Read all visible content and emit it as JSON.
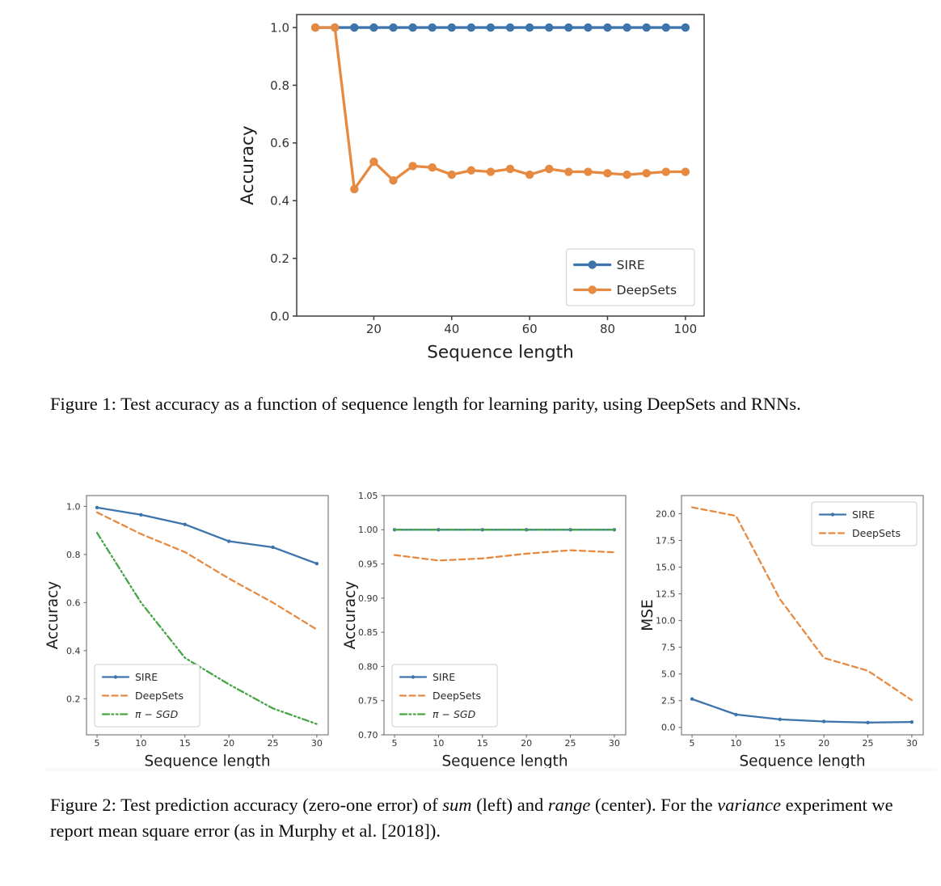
{
  "captions": {
    "figure1": [
      {
        "text": "Figure 1:  Test accuracy as a function of sequence length for learning parity, using DeepSets and RNNs."
      }
    ],
    "figure2": [
      {
        "text": "Figure 2: Test prediction accuracy (zero-one error) of "
      },
      {
        "text": "sum",
        "italic": true
      },
      {
        "text": " (left) and "
      },
      {
        "text": "range",
        "italic": true
      },
      {
        "text": " (center). For the "
      },
      {
        "text": "variance",
        "italic": true
      },
      {
        "text": " experiment we report mean square error (as in Murphy et al. [2018])."
      }
    ]
  },
  "colors": {
    "sire_blue": "#3d74ab",
    "deepsets_orange": "#e68a42",
    "pisgd_green": "#47a447"
  },
  "chart_data": [
    {
      "id": "figure1",
      "type": "line",
      "xlabel": "Sequence length",
      "ylabel": "Accuracy",
      "xlim": [
        0.2,
        104.8
      ],
      "ylim": [
        0.0,
        1.045
      ],
      "xticks": [
        20,
        40,
        60,
        80,
        100
      ],
      "xtick_labels": [
        "20",
        "40",
        "60",
        "80",
        "100"
      ],
      "yticks": [
        0.0,
        0.2,
        0.4,
        0.6,
        0.8,
        1.0
      ],
      "ytick_labels": [
        "0.0",
        "0.2",
        "0.4",
        "0.6",
        "0.8",
        "1.0"
      ],
      "grid": false,
      "legend_position": "lower right",
      "x": [
        5,
        10,
        15,
        20,
        25,
        30,
        35,
        40,
        45,
        50,
        55,
        60,
        65,
        70,
        75,
        80,
        85,
        90,
        95,
        100
      ],
      "series": [
        {
          "name": "SIRE",
          "color": "#3d74ab",
          "line": "solid",
          "marker": true,
          "values": [
            1.0,
            1.0,
            1.0,
            1.0,
            1.0,
            1.0,
            1.0,
            1.0,
            1.0,
            1.0,
            1.0,
            1.0,
            1.0,
            1.0,
            1.0,
            1.0,
            1.0,
            1.0,
            1.0,
            1.0
          ]
        },
        {
          "name": "DeepSets",
          "color": "#e68a42",
          "line": "solid",
          "marker": true,
          "values": [
            1.0,
            1.0,
            0.44,
            0.535,
            0.47,
            0.52,
            0.515,
            0.49,
            0.505,
            0.5,
            0.51,
            0.49,
            0.51,
            0.5,
            0.5,
            0.495,
            0.49,
            0.495,
            0.5,
            0.5
          ]
        }
      ]
    },
    {
      "id": "figure2-left",
      "type": "line",
      "xlabel": "Sequence length",
      "ylabel": "Accuracy",
      "xlim": [
        3.8,
        31.3
      ],
      "ylim": [
        0.05,
        1.045
      ],
      "xticks": [
        5,
        10,
        15,
        20,
        25,
        30
      ],
      "xtick_labels": [
        "5",
        "10",
        "15",
        "20",
        "25",
        "30"
      ],
      "yticks": [
        0.2,
        0.4,
        0.6,
        0.8,
        1.0
      ],
      "ytick_labels": [
        "0.2",
        "0.4",
        "0.6",
        "0.8",
        "1.0"
      ],
      "grid": false,
      "legend_position": "lower left",
      "x": [
        5,
        10,
        15,
        20,
        25,
        30
      ],
      "series": [
        {
          "name": "SIRE",
          "color": "#3d74ab",
          "line": "solid",
          "marker": true,
          "values": [
            0.995,
            0.965,
            0.925,
            0.855,
            0.83,
            0.762
          ]
        },
        {
          "name": "DeepSets",
          "color": "#e68a42",
          "line": "dashed",
          "marker": false,
          "values": [
            0.975,
            0.885,
            0.81,
            0.7,
            0.6,
            0.488
          ]
        },
        {
          "name": "π − SGD",
          "italic": true,
          "color": "#47a447",
          "line": "dashdotdot",
          "marker": false,
          "values": [
            0.89,
            0.6,
            0.37,
            0.26,
            0.16,
            0.095
          ]
        }
      ]
    },
    {
      "id": "figure2-center",
      "type": "line",
      "xlabel": "Sequence length",
      "ylabel": "Accuracy",
      "xlim": [
        3.8,
        31.3
      ],
      "ylim": [
        0.7,
        1.05
      ],
      "xticks": [
        5,
        10,
        15,
        20,
        25,
        30
      ],
      "xtick_labels": [
        "5",
        "10",
        "15",
        "20",
        "25",
        "30"
      ],
      "yticks": [
        0.7,
        0.75,
        0.8,
        0.85,
        0.9,
        0.95,
        1.0,
        1.05
      ],
      "ytick_labels": [
        "0.70",
        "0.75",
        "0.80",
        "0.85",
        "0.90",
        "0.95",
        "1.00",
        "1.05"
      ],
      "grid": false,
      "legend_position": "lower left",
      "x": [
        5,
        10,
        15,
        20,
        25,
        30
      ],
      "series": [
        {
          "name": "SIRE",
          "color": "#3d74ab",
          "line": "solid",
          "marker": true,
          "values": [
            1.0,
            1.0,
            1.0,
            1.0,
            1.0,
            1.0
          ]
        },
        {
          "name": "DeepSets",
          "color": "#e68a42",
          "line": "dashed",
          "marker": false,
          "values": [
            0.963,
            0.955,
            0.958,
            0.965,
            0.97,
            0.967
          ]
        },
        {
          "name": "π − SGD",
          "italic": true,
          "color": "#47a447",
          "line": "dashdotdot",
          "marker": false,
          "values": [
            1.0,
            1.0,
            1.0,
            1.0,
            1.0,
            1.0
          ]
        }
      ]
    },
    {
      "id": "figure2-right",
      "type": "line",
      "xlabel": "Sequence length",
      "ylabel": "MSE",
      "xlim": [
        3.8,
        31.3
      ],
      "ylim": [
        -0.7,
        21.7
      ],
      "xticks": [
        5,
        10,
        15,
        20,
        25,
        30
      ],
      "xtick_labels": [
        "5",
        "10",
        "15",
        "20",
        "25",
        "30"
      ],
      "yticks": [
        0.0,
        2.5,
        5.0,
        7.5,
        10.0,
        12.5,
        15.0,
        17.5,
        20.0
      ],
      "ytick_labels": [
        "0.0",
        "2.5",
        "5.0",
        "7.5",
        "10.0",
        "12.5",
        "15.0",
        "17.5",
        "20.0"
      ],
      "grid": false,
      "legend_position": "upper right",
      "x": [
        5,
        10,
        15,
        20,
        25,
        30
      ],
      "series": [
        {
          "name": "SIRE",
          "color": "#3d74ab",
          "line": "solid",
          "marker": true,
          "values": [
            2.65,
            1.2,
            0.75,
            0.55,
            0.45,
            0.5
          ]
        },
        {
          "name": "DeepSets",
          "color": "#e68a42",
          "line": "dashed",
          "marker": false,
          "values": [
            20.6,
            19.8,
            12.0,
            6.5,
            5.3,
            2.55
          ]
        }
      ]
    }
  ]
}
